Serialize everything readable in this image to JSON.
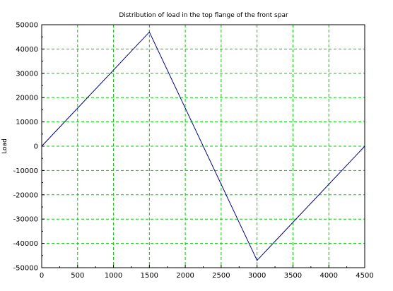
{
  "chart_data": {
    "type": "line",
    "title": "Distribution of load in the top flange of the front spar",
    "xlabel": "",
    "ylabel": "Load",
    "xlim": [
      0,
      4500
    ],
    "ylim": [
      -50000,
      50000
    ],
    "x_ticks": [
      0,
      500,
      1000,
      1500,
      2000,
      2500,
      3000,
      3500,
      4000,
      4500
    ],
    "y_ticks": [
      50000,
      40000,
      30000,
      20000,
      10000,
      0,
      -10000,
      -20000,
      -30000,
      -40000,
      -50000
    ],
    "grid": true,
    "grid_color": "#00cc00",
    "line_color": "#000080",
    "series": [
      {
        "x": [
          0,
          1500,
          3000,
          4500
        ],
        "y": [
          0,
          47000,
          -47000,
          0
        ]
      }
    ]
  }
}
